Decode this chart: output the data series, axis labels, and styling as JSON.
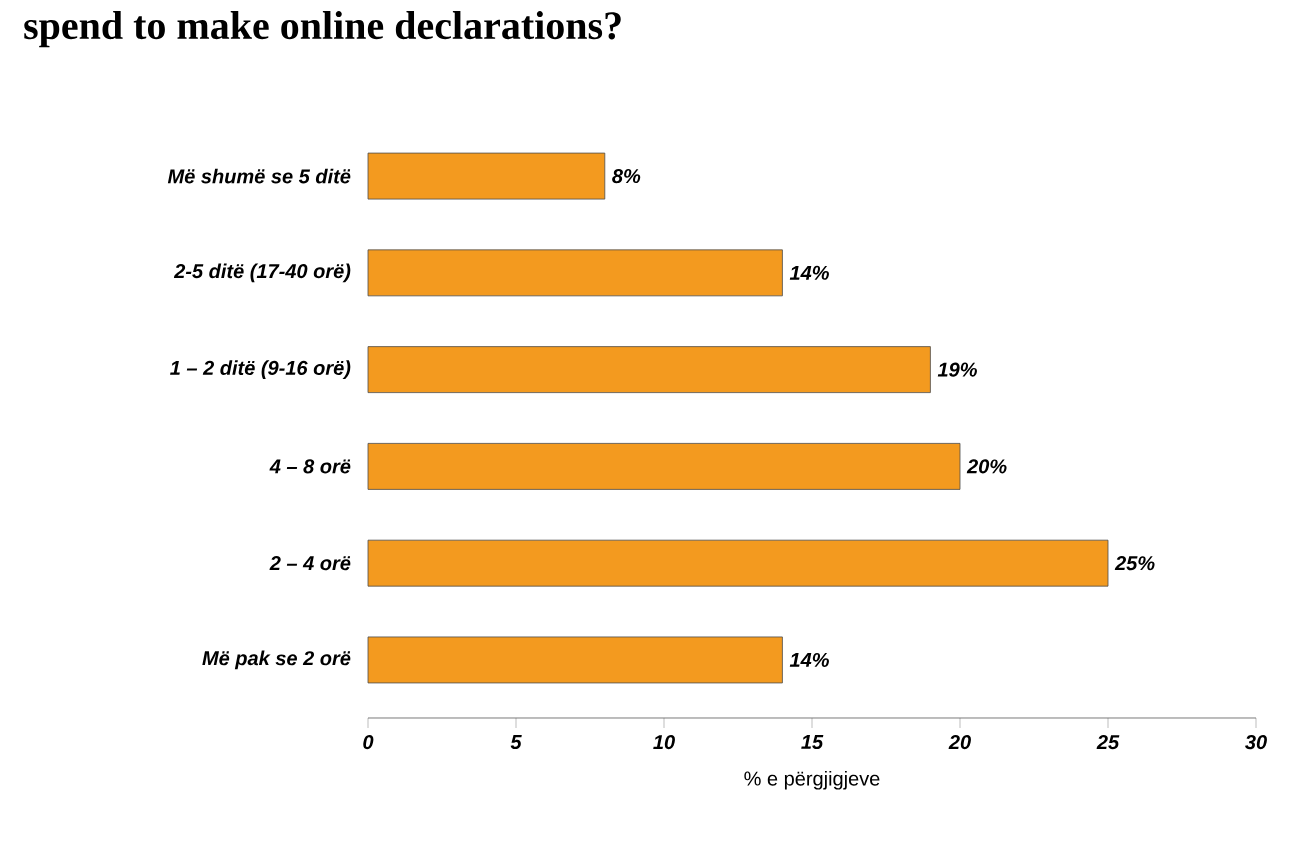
{
  "chart_data": {
    "type": "bar",
    "orientation": "horizontal",
    "title": "spend to make online declarations?",
    "categories": [
      "Më shumë se 5 ditë",
      "2-5 ditë (17-40 orë)",
      "1 – 2 ditë (9-16 orë)",
      "4 – 8 orë",
      "2 – 4 orë",
      "Më pak se 2 orë"
    ],
    "values": [
      8,
      14,
      19,
      20,
      25,
      14
    ],
    "value_labels": [
      "8%",
      "14%",
      "19%",
      "20%",
      "25%",
      "14%"
    ],
    "color": "#f39a1f",
    "xlabel": "% e përgjigjeve",
    "xlim": [
      0,
      30
    ],
    "xticks": [
      0,
      5,
      10,
      15,
      20,
      25,
      30
    ]
  }
}
